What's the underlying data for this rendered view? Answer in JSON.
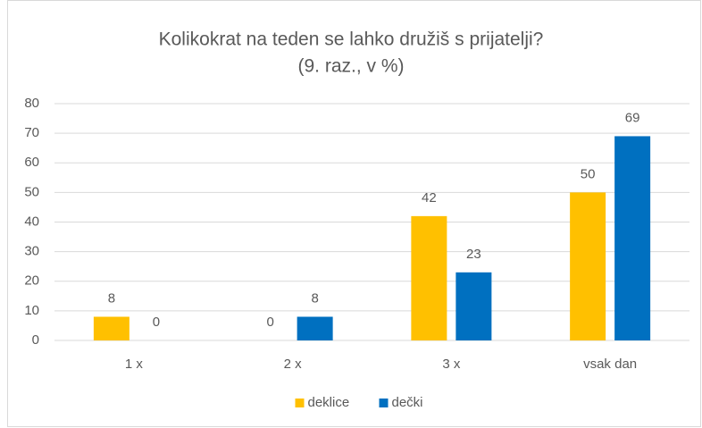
{
  "chart_data": {
    "type": "bar",
    "title": "Kolikokrat na teden se lahko družiš s prijatelji?",
    "subtitle": "(9. raz., v %)",
    "categories": [
      "1 x",
      "2 x",
      "3 x",
      "vsak dan"
    ],
    "series": [
      {
        "name": "deklice",
        "color": "#ffc000",
        "values": [
          8,
          0,
          42,
          50
        ]
      },
      {
        "name": "dečki",
        "color": "#0070c0",
        "values": [
          0,
          8,
          23,
          69
        ]
      }
    ],
    "ylim": [
      0,
      80
    ],
    "yticks": [
      0,
      10,
      20,
      30,
      40,
      50,
      60,
      70,
      80
    ],
    "grid": true,
    "legend": "bottom"
  }
}
